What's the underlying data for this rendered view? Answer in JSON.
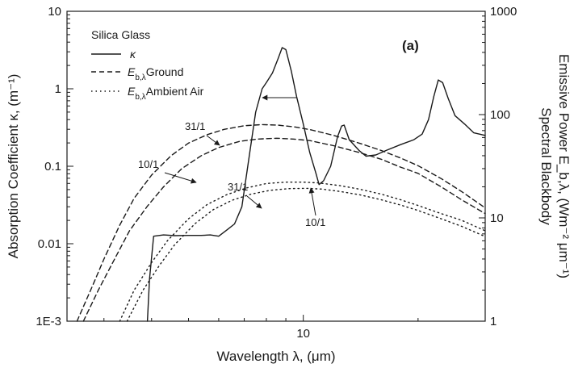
{
  "chart_data": {
    "type": "line",
    "panel_label": "(a)",
    "xlabel": "Wavelength λ, (μm)",
    "ylabel_left": "Absorption Coefficient κ, (m⁻¹)",
    "ylabel_right_line1": "Spectral Blackbody",
    "ylabel_right_line2": "Emissive Power E_b,λ, (Wm⁻² μm⁻¹)",
    "x_scale": "log",
    "y_left_scale": "log",
    "y_right_scale": "log",
    "xlim": [
      2.4,
      30
    ],
    "ylim_left": [
      0.001,
      10
    ],
    "ylim_right": [
      1,
      1000
    ],
    "x_ticks": [
      {
        "value": 10,
        "label": "10"
      }
    ],
    "y_left_ticks": [
      {
        "value": 0.001,
        "label": "1E-3"
      },
      {
        "value": 0.01,
        "label": "0.01"
      },
      {
        "value": 0.1,
        "label": "0.1"
      },
      {
        "value": 1,
        "label": "1"
      },
      {
        "value": 10,
        "label": "10"
      }
    ],
    "y_right_ticks": [
      {
        "value": 1,
        "label": "1"
      },
      {
        "value": 10,
        "label": "10"
      },
      {
        "value": 100,
        "label": "100"
      },
      {
        "value": 1000,
        "label": "1000"
      }
    ],
    "legend": {
      "title": "Silica Glass",
      "placement": "top-left",
      "entries": [
        {
          "series": "kappa",
          "symbol": "κ",
          "text": ""
        },
        {
          "series": "eb_ground",
          "symbol": "E",
          "subscript": "b,λ",
          "text": "Ground"
        },
        {
          "series": "eb_air",
          "symbol": "E",
          "subscript": "b,λ",
          "text": "Ambient Air"
        }
      ]
    },
    "series": [
      {
        "id": "kappa",
        "name": "κ",
        "axis": "left",
        "style": "solid",
        "x": [
          3.9,
          3.95,
          4.05,
          4.3,
          4.6,
          5.0,
          5.4,
          5.7,
          6.0,
          6.3,
          6.6,
          6.9,
          7.15,
          7.5,
          7.8,
          8.0,
          8.3,
          8.6,
          8.8,
          9.0,
          9.3,
          9.6,
          10.0,
          10.4,
          10.8,
          11.0,
          11.3,
          11.8,
          12.3,
          12.6,
          12.8,
          13.2,
          14.0,
          14.6,
          15.5,
          16.5,
          18.0,
          19.5,
          20.5,
          21.3,
          22.0,
          22.6,
          23.2,
          24.0,
          25.0,
          26.5,
          28.0,
          30.0
        ],
        "values": [
          0.001,
          0.0035,
          0.0125,
          0.013,
          0.0127,
          0.0128,
          0.0128,
          0.013,
          0.0125,
          0.015,
          0.018,
          0.03,
          0.1,
          0.5,
          1.0,
          1.2,
          1.6,
          2.5,
          3.4,
          3.2,
          1.7,
          0.8,
          0.35,
          0.15,
          0.08,
          0.058,
          0.065,
          0.1,
          0.24,
          0.33,
          0.34,
          0.22,
          0.16,
          0.135,
          0.14,
          0.16,
          0.19,
          0.22,
          0.26,
          0.4,
          0.8,
          1.3,
          1.2,
          0.75,
          0.45,
          0.35,
          0.27,
          0.25
        ]
      },
      {
        "id": "eb_ground",
        "name": "E_b,λ Ground",
        "axis": "right",
        "style": "dashed",
        "curves": [
          {
            "label": "31/1",
            "x": [
              2.55,
              2.8,
              3.0,
              3.3,
              3.6,
              4.0,
              4.5,
              5.0,
              5.6,
              6.2,
              7.0,
              7.8,
              8.6,
              9.5,
              10.5,
              12.0,
              14.0,
              16.0,
              18.0,
              20.0,
              23.0,
              26.0,
              30.0
            ],
            "values": [
              1.0,
              2.2,
              4.0,
              8.5,
              15.5,
              26,
              40,
              53,
              64,
              72,
              78,
              80,
              79,
              76,
              71,
              63,
              53,
              45,
              38,
              32,
              24,
              18,
              12.5
            ]
          },
          {
            "label": "10/1",
            "x": [
              2.65,
              2.9,
              3.2,
              3.5,
              3.9,
              4.3,
              4.8,
              5.4,
              6.0,
              6.8,
              7.6,
              8.5,
              9.4,
              10.4,
              12.0,
              14.0,
              16.0,
              18.0,
              20.0,
              23.0,
              26.0,
              30.0
            ],
            "values": [
              1.0,
              2.0,
              4.0,
              7.5,
              13,
              20,
              30,
              40,
              48,
              55,
              58,
              59,
              58,
              56,
              50,
              43,
              37,
              31,
              27,
              20,
              15,
              11
            ]
          }
        ]
      },
      {
        "id": "eb_air",
        "name": "E_b,λ Ambient Air",
        "axis": "right",
        "style": "dotted",
        "curves": [
          {
            "label": "31/1",
            "x": [
              3.3,
              3.6,
              4.0,
              4.4,
              5.0,
              5.6,
              6.3,
              7.1,
              8.0,
              9.0,
              10.0,
              11.0,
              12.5,
              14.0,
              16.0,
              18.0,
              20.0,
              23.0,
              26.0,
              30.0
            ],
            "values": [
              1.0,
              2.0,
              3.7,
              6.0,
              9.8,
              13.5,
              16.8,
              19.5,
              21.5,
              22.2,
              22.2,
              21.8,
              20.5,
              19.0,
              17.0,
              15.0,
              13.2,
              11.0,
              9.5,
              7.5
            ]
          },
          {
            "label": "10/1",
            "x": [
              3.45,
              3.8,
              4.2,
              4.6,
              5.2,
              5.8,
              6.5,
              7.3,
              8.2,
              9.2,
              10.2,
              11.2,
              12.5,
              14.0,
              16.0,
              18.0,
              20.0,
              23.0,
              26.0,
              30.0
            ],
            "values": [
              1.0,
              2.0,
              3.5,
              5.5,
              8.8,
              12.0,
              14.8,
              17.0,
              18.5,
              19.2,
              19.3,
              19.0,
              18.0,
              16.8,
              15.0,
              13.3,
              11.8,
              9.8,
              8.3,
              6.6
            ]
          }
        ]
      }
    ],
    "annotations": [
      {
        "text": "31/1",
        "target_series": "eb_ground"
      },
      {
        "text": "10/1",
        "target_series": "eb_ground"
      },
      {
        "text": "31/1",
        "target_series": "eb_air"
      },
      {
        "text": "10/1",
        "target_series": "eb_air"
      }
    ]
  }
}
